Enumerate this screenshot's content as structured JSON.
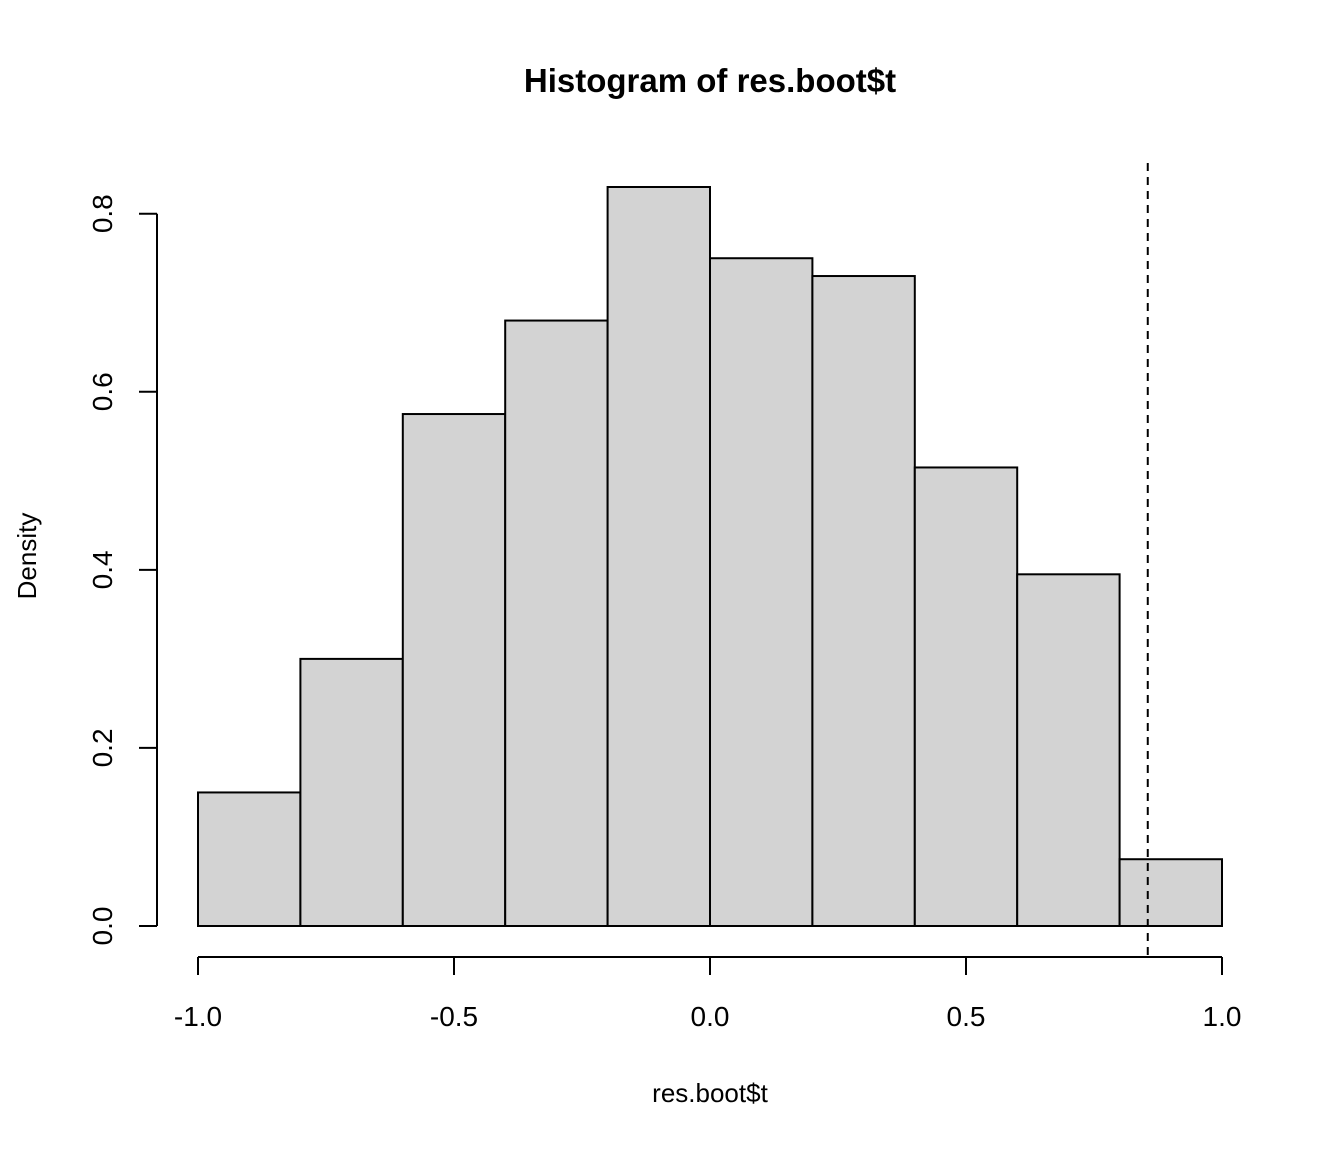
{
  "chart_data": {
    "type": "bar",
    "subtype": "histogram",
    "title": "Histogram of res.boot$t",
    "xlabel": "res.boot$t",
    "ylabel": "Density",
    "bins": [
      {
        "from": -1.0,
        "to": -0.8,
        "density": 0.15
      },
      {
        "from": -0.8,
        "to": -0.6,
        "density": 0.3
      },
      {
        "from": -0.6,
        "to": -0.4,
        "density": 0.575
      },
      {
        "from": -0.4,
        "to": -0.2,
        "density": 0.68
      },
      {
        "from": -0.2,
        "to": 0.0,
        "density": 0.83
      },
      {
        "from": 0.0,
        "to": 0.2,
        "density": 0.75
      },
      {
        "from": 0.2,
        "to": 0.4,
        "density": 0.73
      },
      {
        "from": 0.4,
        "to": 0.6,
        "density": 0.515
      },
      {
        "from": 0.6,
        "to": 0.8,
        "density": 0.395
      },
      {
        "from": 0.8,
        "to": 1.0,
        "density": 0.075
      }
    ],
    "xlim": [
      -1.0,
      1.0
    ],
    "ylim": [
      0,
      0.83
    ],
    "x_ticks": [
      -1.0,
      -0.5,
      0.0,
      0.5,
      1.0
    ],
    "x_tick_labels": [
      "-1.0",
      "-0.5",
      "0.0",
      "0.5",
      "1.0"
    ],
    "y_ticks": [
      0.0,
      0.2,
      0.4,
      0.6,
      0.8
    ],
    "y_tick_labels": [
      "0.0",
      "0.2",
      "0.4",
      "0.6",
      "0.8"
    ],
    "reference_line": {
      "x": 0.855,
      "style": "dashed"
    },
    "bar_fill": "#d3d3d3",
    "bar_stroke": "#000000",
    "grid": false,
    "legend": "none"
  }
}
